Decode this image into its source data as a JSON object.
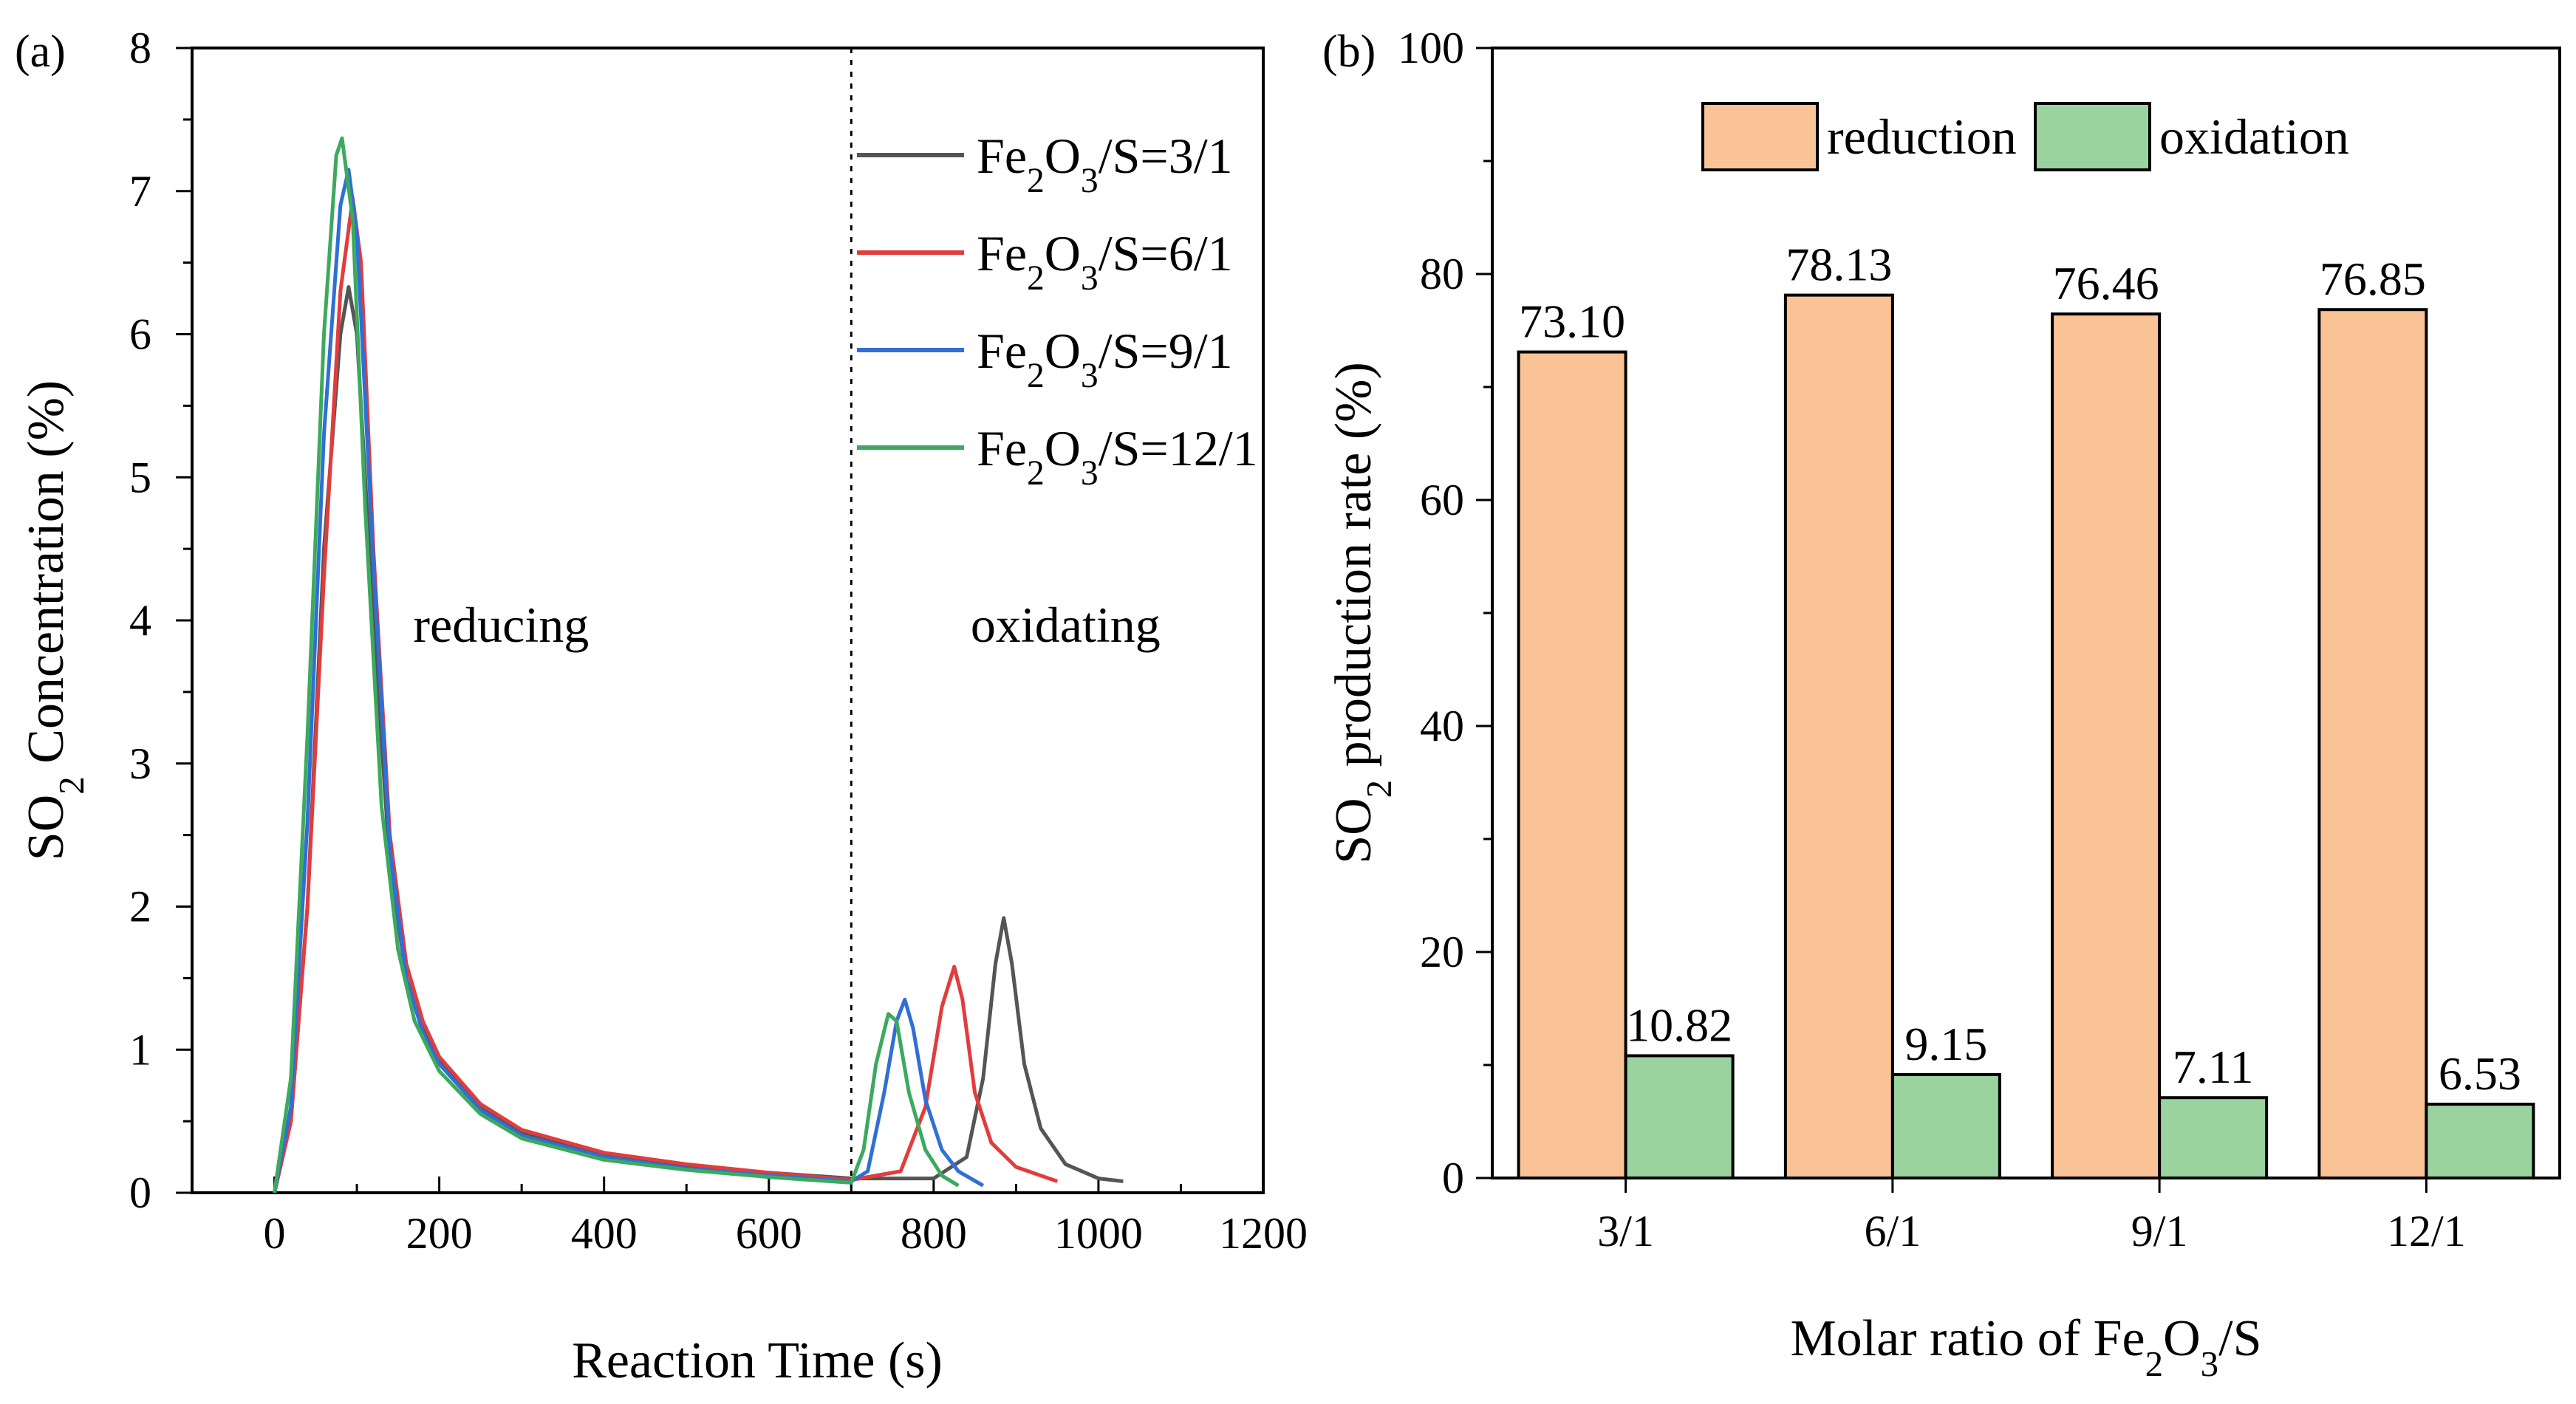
{
  "chart_data": [
    {
      "type": "line",
      "panel": "(a)",
      "xlabel": "Reaction Time (s)",
      "ylabel_parts": [
        "SO",
        "2",
        " Concentration (%)"
      ],
      "xlim": [
        -100,
        1200
      ],
      "ylim": [
        0,
        8
      ],
      "x_ticks": [
        0,
        200,
        400,
        600,
        800,
        1000,
        1200
      ],
      "y_ticks": [
        0,
        1,
        2,
        3,
        4,
        5,
        6,
        7,
        8
      ],
      "divider_x": 700,
      "annotations": [
        "reducing",
        "oxidating"
      ],
      "legend_position": "top-right",
      "series": [
        {
          "name": "Fe2O3/S=3/1",
          "label_parts": [
            "Fe",
            "2",
            "O",
            "3",
            "/S=3/1"
          ],
          "color": "#555555",
          "points": [
            [
              0,
              0
            ],
            [
              20,
              0.5
            ],
            [
              40,
              2.0
            ],
            [
              60,
              4.5
            ],
            [
              80,
              6.0
            ],
            [
              90,
              6.33
            ],
            [
              100,
              6.0
            ],
            [
              120,
              4.0
            ],
            [
              140,
              2.3
            ],
            [
              160,
              1.5
            ],
            [
              180,
              1.15
            ],
            [
              200,
              0.92
            ],
            [
              250,
              0.6
            ],
            [
              300,
              0.42
            ],
            [
              400,
              0.27
            ],
            [
              500,
              0.19
            ],
            [
              600,
              0.14
            ],
            [
              700,
              0.1
            ],
            [
              800,
              0.1
            ],
            [
              840,
              0.25
            ],
            [
              860,
              0.8
            ],
            [
              875,
              1.6
            ],
            [
              885,
              1.92
            ],
            [
              895,
              1.6
            ],
            [
              910,
              0.9
            ],
            [
              930,
              0.45
            ],
            [
              960,
              0.2
            ],
            [
              1000,
              0.1
            ],
            [
              1030,
              0.08
            ]
          ]
        },
        {
          "name": "Fe2O3/S=6/1",
          "label_parts": [
            "Fe",
            "2",
            "O",
            "3",
            "/S=6/1"
          ],
          "color": "#e23c3c",
          "points": [
            [
              0,
              0
            ],
            [
              20,
              0.5
            ],
            [
              40,
              2.0
            ],
            [
              60,
              4.3
            ],
            [
              80,
              6.3
            ],
            [
              95,
              6.95
            ],
            [
              105,
              6.5
            ],
            [
              120,
              4.5
            ],
            [
              140,
              2.5
            ],
            [
              160,
              1.6
            ],
            [
              180,
              1.2
            ],
            [
              200,
              0.95
            ],
            [
              250,
              0.62
            ],
            [
              300,
              0.44
            ],
            [
              400,
              0.28
            ],
            [
              500,
              0.2
            ],
            [
              600,
              0.14
            ],
            [
              700,
              0.09
            ],
            [
              760,
              0.15
            ],
            [
              790,
              0.6
            ],
            [
              810,
              1.3
            ],
            [
              825,
              1.58
            ],
            [
              835,
              1.35
            ],
            [
              850,
              0.7
            ],
            [
              870,
              0.35
            ],
            [
              900,
              0.18
            ],
            [
              950,
              0.08
            ]
          ]
        },
        {
          "name": "Fe2O3/S=9/1",
          "label_parts": [
            "Fe",
            "2",
            "O",
            "3",
            "/S=9/1"
          ],
          "color": "#2f6fd6",
          "points": [
            [
              0,
              0
            ],
            [
              20,
              0.6
            ],
            [
              40,
              2.6
            ],
            [
              60,
              5.3
            ],
            [
              80,
              6.9
            ],
            [
              90,
              7.15
            ],
            [
              100,
              6.7
            ],
            [
              120,
              4.4
            ],
            [
              140,
              2.4
            ],
            [
              160,
              1.5
            ],
            [
              180,
              1.12
            ],
            [
              200,
              0.9
            ],
            [
              250,
              0.58
            ],
            [
              300,
              0.4
            ],
            [
              400,
              0.25
            ],
            [
              500,
              0.17
            ],
            [
              600,
              0.12
            ],
            [
              700,
              0.08
            ],
            [
              720,
              0.15
            ],
            [
              740,
              0.7
            ],
            [
              755,
              1.2
            ],
            [
              765,
              1.35
            ],
            [
              775,
              1.15
            ],
            [
              790,
              0.65
            ],
            [
              810,
              0.3
            ],
            [
              830,
              0.15
            ],
            [
              860,
              0.05
            ]
          ]
        },
        {
          "name": "Fe2O3/S=12/1",
          "label_parts": [
            "Fe",
            "2",
            "O",
            "3",
            "/S=12/1"
          ],
          "color": "#3caa5e",
          "points": [
            [
              0,
              0
            ],
            [
              20,
              0.8
            ],
            [
              40,
              3.2
            ],
            [
              60,
              6.0
            ],
            [
              75,
              7.25
            ],
            [
              82,
              7.37
            ],
            [
              95,
              6.8
            ],
            [
              110,
              4.8
            ],
            [
              130,
              2.7
            ],
            [
              150,
              1.7
            ],
            [
              170,
              1.2
            ],
            [
              200,
              0.85
            ],
            [
              250,
              0.55
            ],
            [
              300,
              0.38
            ],
            [
              400,
              0.23
            ],
            [
              500,
              0.16
            ],
            [
              600,
              0.11
            ],
            [
              700,
              0.07
            ],
            [
              715,
              0.3
            ],
            [
              730,
              0.9
            ],
            [
              745,
              1.25
            ],
            [
              755,
              1.2
            ],
            [
              770,
              0.7
            ],
            [
              790,
              0.3
            ],
            [
              810,
              0.12
            ],
            [
              830,
              0.05
            ]
          ]
        }
      ]
    },
    {
      "type": "bar",
      "panel": "(b)",
      "xlabel_parts": [
        "Molar ratio of  Fe",
        "2",
        "O",
        "3",
        "/S"
      ],
      "ylabel_parts": [
        "SO",
        "2",
        " production rate (%)"
      ],
      "categories": [
        "3/1",
        "6/1",
        "9/1",
        "12/1"
      ],
      "ylim": [
        0,
        100
      ],
      "y_ticks": [
        0,
        20,
        40,
        60,
        80,
        100
      ],
      "legend_position": "top",
      "series": [
        {
          "name": "reduction",
          "color": "#f9c395",
          "values": [
            73.1,
            78.13,
            76.46,
            76.85
          ],
          "labels": [
            "73.10",
            "78.13",
            "76.46",
            "76.85"
          ]
        },
        {
          "name": "oxidation",
          "color": "#9ad39e",
          "values": [
            10.82,
            9.15,
            7.11,
            6.53
          ],
          "labels": [
            "10.82",
            "9.15",
            "7.11",
            "6.53"
          ]
        }
      ]
    }
  ]
}
